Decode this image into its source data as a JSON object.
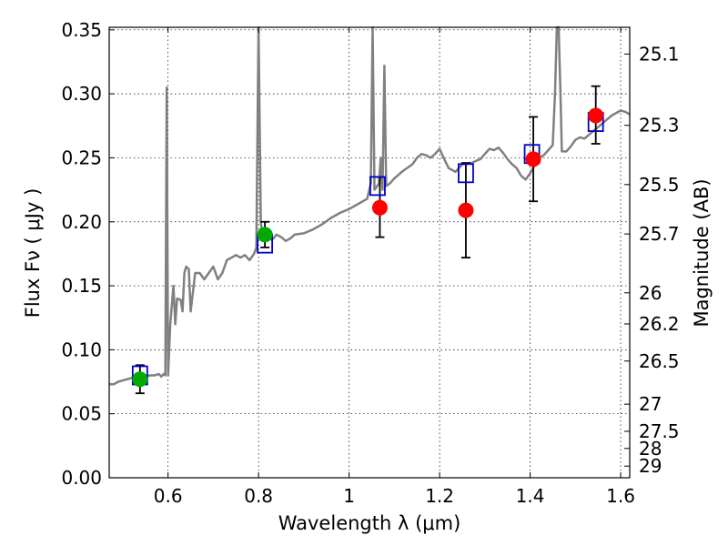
{
  "chart_data": {
    "type": "scatter",
    "xlabel": "Wavelength  λ (μm)",
    "ylabel": "Flux  Fν  ( μJy )",
    "ylabel_right": "Magnitude (AB)",
    "xlim": [
      0.47,
      1.62
    ],
    "ylim": [
      0.0,
      0.352
    ],
    "grid": true,
    "x_ticks": [
      0.6,
      0.8,
      1.0,
      1.2,
      1.4,
      1.6
    ],
    "x_tick_labels": [
      "0.6",
      "0.8",
      "1",
      "1.2",
      "1.4",
      "1.6"
    ],
    "y_ticks": [
      0.0,
      0.05,
      0.1,
      0.15,
      0.2,
      0.25,
      0.3,
      0.35
    ],
    "y_tick_labels": [
      "0.00",
      "0.05",
      "0.10",
      "0.15",
      "0.20",
      "0.25",
      "0.30",
      "0.35"
    ],
    "magnitude_ticks": [
      {
        "label": "25.1",
        "flux": 0.3311
      },
      {
        "label": "25.3",
        "flux": 0.2754
      },
      {
        "label": "25.5",
        "flux": 0.2291
      },
      {
        "label": "25.7",
        "flux": 0.1905
      },
      {
        "label": "26",
        "flux": 0.1445
      },
      {
        "label": "26.2",
        "flux": 0.1202
      },
      {
        "label": "26.5",
        "flux": 0.0912
      },
      {
        "label": "27",
        "flux": 0.0575
      },
      {
        "label": "27.5",
        "flux": 0.0363
      },
      {
        "label": "28",
        "flux": 0.0229
      },
      {
        "label": "29",
        "flux": 0.0091
      }
    ],
    "series": [
      {
        "name": "model-spectrum",
        "kind": "line",
        "color": "#808080",
        "points": [
          [
            0.47,
            0.073
          ],
          [
            0.48,
            0.073
          ],
          [
            0.49,
            0.075
          ],
          [
            0.5,
            0.076
          ],
          [
            0.51,
            0.077
          ],
          [
            0.52,
            0.078
          ],
          [
            0.53,
            0.078
          ],
          [
            0.54,
            0.079
          ],
          [
            0.55,
            0.079
          ],
          [
            0.56,
            0.08
          ],
          [
            0.57,
            0.08
          ],
          [
            0.58,
            0.081
          ],
          [
            0.585,
            0.079
          ],
          [
            0.59,
            0.081
          ],
          [
            0.594,
            0.08
          ],
          [
            0.597,
            0.305
          ],
          [
            0.6,
            0.08
          ],
          [
            0.605,
            0.12
          ],
          [
            0.612,
            0.15
          ],
          [
            0.616,
            0.12
          ],
          [
            0.62,
            0.14
          ],
          [
            0.628,
            0.139
          ],
          [
            0.632,
            0.13
          ],
          [
            0.636,
            0.16
          ],
          [
            0.64,
            0.165
          ],
          [
            0.646,
            0.163
          ],
          [
            0.65,
            0.13
          ],
          [
            0.66,
            0.16
          ],
          [
            0.67,
            0.16
          ],
          [
            0.68,
            0.155
          ],
          [
            0.69,
            0.16
          ],
          [
            0.7,
            0.165
          ],
          [
            0.71,
            0.155
          ],
          [
            0.72,
            0.16
          ],
          [
            0.73,
            0.17
          ],
          [
            0.74,
            0.172
          ],
          [
            0.75,
            0.174
          ],
          [
            0.76,
            0.172
          ],
          [
            0.77,
            0.174
          ],
          [
            0.78,
            0.17
          ],
          [
            0.79,
            0.175
          ],
          [
            0.795,
            0.18
          ],
          [
            0.8,
            0.352
          ],
          [
            0.805,
            0.2
          ],
          [
            0.81,
            0.185
          ],
          [
            0.82,
            0.187
          ],
          [
            0.83,
            0.186
          ],
          [
            0.84,
            0.19
          ],
          [
            0.85,
            0.188
          ],
          [
            0.86,
            0.185
          ],
          [
            0.87,
            0.187
          ],
          [
            0.88,
            0.19
          ],
          [
            0.9,
            0.191
          ],
          [
            0.92,
            0.194
          ],
          [
            0.94,
            0.198
          ],
          [
            0.96,
            0.203
          ],
          [
            0.98,
            0.207
          ],
          [
            1.0,
            0.21
          ],
          [
            1.02,
            0.214
          ],
          [
            1.04,
            0.218
          ],
          [
            1.048,
            0.23
          ],
          [
            1.052,
            0.352
          ],
          [
            1.056,
            0.225
          ],
          [
            1.062,
            0.228
          ],
          [
            1.066,
            0.23
          ],
          [
            1.07,
            0.25
          ],
          [
            1.074,
            0.225
          ],
          [
            1.078,
            0.322
          ],
          [
            1.082,
            0.228
          ],
          [
            1.09,
            0.23
          ],
          [
            1.1,
            0.234
          ],
          [
            1.12,
            0.24
          ],
          [
            1.14,
            0.245
          ],
          [
            1.15,
            0.25
          ],
          [
            1.16,
            0.253
          ],
          [
            1.17,
            0.252
          ],
          [
            1.18,
            0.25
          ],
          [
            1.19,
            0.253
          ],
          [
            1.2,
            0.257
          ],
          [
            1.21,
            0.249
          ],
          [
            1.22,
            0.242
          ],
          [
            1.235,
            0.239
          ],
          [
            1.25,
            0.245
          ],
          [
            1.27,
            0.246
          ],
          [
            1.29,
            0.249
          ],
          [
            1.3,
            0.253
          ],
          [
            1.31,
            0.257
          ],
          [
            1.32,
            0.256
          ],
          [
            1.33,
            0.258
          ],
          [
            1.34,
            0.254
          ],
          [
            1.35,
            0.249
          ],
          [
            1.36,
            0.245
          ],
          [
            1.37,
            0.242
          ],
          [
            1.38,
            0.236
          ],
          [
            1.39,
            0.233
          ],
          [
            1.4,
            0.238
          ],
          [
            1.41,
            0.244
          ],
          [
            1.42,
            0.25
          ],
          [
            1.43,
            0.252
          ],
          [
            1.44,
            0.256
          ],
          [
            1.45,
            0.26
          ],
          [
            1.455,
            0.3
          ],
          [
            1.459,
            0.352
          ],
          [
            1.463,
            0.352
          ],
          [
            1.467,
            0.3
          ],
          [
            1.47,
            0.255
          ],
          [
            1.48,
            0.255
          ],
          [
            1.49,
            0.259
          ],
          [
            1.5,
            0.264
          ],
          [
            1.51,
            0.266
          ],
          [
            1.52,
            0.265
          ],
          [
            1.53,
            0.268
          ],
          [
            1.54,
            0.271
          ],
          [
            1.55,
            0.274
          ],
          [
            1.56,
            0.277
          ],
          [
            1.57,
            0.28
          ],
          [
            1.58,
            0.283
          ],
          [
            1.59,
            0.285
          ],
          [
            1.6,
            0.287
          ],
          [
            1.61,
            0.286
          ],
          [
            1.62,
            0.284
          ]
        ]
      },
      {
        "name": "model-photometry",
        "kind": "open-square-marker",
        "color": "#0000cc",
        "x": [
          0.538,
          0.814,
          1.063,
          1.258,
          1.404,
          1.545
        ],
        "y": [
          0.08,
          0.183,
          0.228,
          0.238,
          0.253,
          0.278
        ]
      },
      {
        "name": "optical-detections",
        "kind": "filled-circle-marker",
        "color": "#00aa00",
        "x": [
          0.538,
          0.814
        ],
        "y": [
          0.077,
          0.19
        ],
        "yerr": [
          0.011,
          0.01
        ]
      },
      {
        "name": "nir-detections",
        "kind": "filled-circle-marker",
        "color": "#ff0000",
        "x": [
          1.068,
          1.258,
          1.407,
          1.545
        ],
        "y": [
          0.211,
          0.209,
          0.249,
          0.283
        ],
        "yerr_low": [
          0.023,
          0.037,
          0.033,
          0.022
        ],
        "yerr_high": [
          0.024,
          0.037,
          0.033,
          0.023
        ]
      }
    ]
  }
}
